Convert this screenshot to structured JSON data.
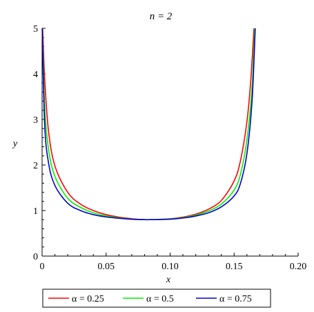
{
  "chart_data": {
    "type": "line",
    "title": "n = 2",
    "xlabel": "x",
    "ylabel": "y",
    "xlim": [
      0,
      0.2
    ],
    "ylim": [
      0,
      5
    ],
    "x_ticks": [
      "0",
      "0.05",
      "0.10",
      "0.15",
      "0.20"
    ],
    "y_ticks": [
      "0",
      "1",
      "2",
      "3",
      "4",
      "5"
    ],
    "grid": false,
    "legend_position": "bottom",
    "series": [
      {
        "name": "α = 0.25",
        "color": "#ff0000",
        "x": [
          0.0005,
          0.002,
          0.005,
          0.01,
          0.02,
          0.03,
          0.04,
          0.05,
          0.06,
          0.07,
          0.08,
          0.085,
          0.09,
          0.1,
          0.11,
          0.12,
          0.13,
          0.14,
          0.15,
          0.155,
          0.16,
          0.163,
          0.1655
        ],
        "y": [
          5.0,
          3.9,
          2.75,
          1.98,
          1.4,
          1.14,
          1.0,
          0.91,
          0.855,
          0.82,
          0.8,
          0.8,
          0.805,
          0.82,
          0.855,
          0.92,
          1.03,
          1.22,
          1.65,
          2.1,
          2.95,
          3.85,
          5.0
        ]
      },
      {
        "name": "α = 0.5",
        "color": "#00ee00",
        "x": [
          0.0002,
          0.002,
          0.005,
          0.01,
          0.02,
          0.03,
          0.04,
          0.05,
          0.06,
          0.07,
          0.08,
          0.085,
          0.09,
          0.1,
          0.11,
          0.12,
          0.13,
          0.14,
          0.15,
          0.155,
          0.16,
          0.164,
          0.166
        ],
        "y": [
          5.0,
          3.3,
          2.35,
          1.75,
          1.27,
          1.07,
          0.95,
          0.88,
          0.84,
          0.81,
          0.8,
          0.8,
          0.802,
          0.815,
          0.845,
          0.9,
          0.99,
          1.14,
          1.45,
          1.8,
          2.55,
          3.7,
          5.0
        ]
      },
      {
        "name": "α = 0.75",
        "color": "#0000cc",
        "x": [
          0.0001,
          0.002,
          0.005,
          0.01,
          0.02,
          0.03,
          0.04,
          0.05,
          0.06,
          0.07,
          0.08,
          0.085,
          0.09,
          0.1,
          0.11,
          0.12,
          0.13,
          0.14,
          0.15,
          0.155,
          0.16,
          0.164,
          0.1665
        ],
        "y": [
          5.0,
          2.9,
          2.05,
          1.55,
          1.16,
          1.0,
          0.91,
          0.86,
          0.83,
          0.81,
          0.8,
          0.8,
          0.801,
          0.81,
          0.835,
          0.88,
          0.95,
          1.08,
          1.32,
          1.6,
          2.25,
          3.4,
          5.0
        ]
      }
    ]
  }
}
